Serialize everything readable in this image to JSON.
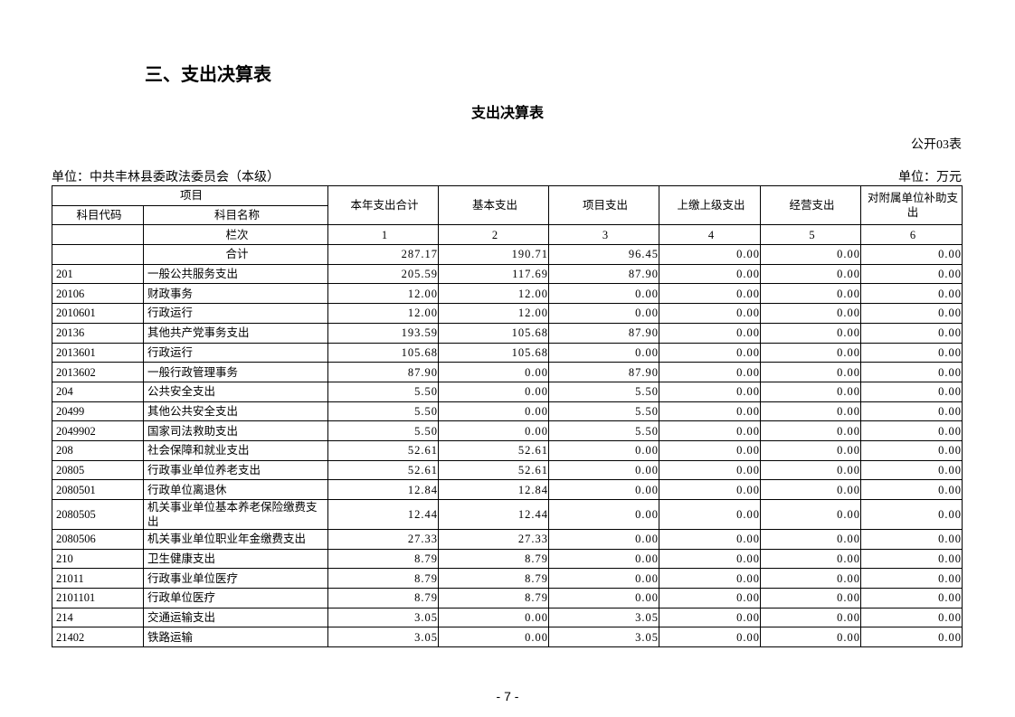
{
  "heading": "三、支出决算表",
  "title": "支出决算表",
  "form_code": "公开03表",
  "unit_left": "单位：中共丰林县委政法委员会（本级）",
  "unit_right": "单位：万元",
  "table": {
    "header": {
      "item": "项目",
      "code": "科目代码",
      "name": "科目名称",
      "columns": [
        "本年支出合计",
        "基本支出",
        "项目支出",
        "上缴上级支出",
        "经营支出",
        "对附属单位补助支出"
      ],
      "seq_label": "栏次",
      "seq": [
        "1",
        "2",
        "3",
        "4",
        "5",
        "6"
      ]
    },
    "total": {
      "name": "合计",
      "values": [
        "287.17",
        "190.71",
        "96.45",
        "0.00",
        "0.00",
        "0.00"
      ]
    },
    "rows": [
      {
        "code": "201",
        "name": "一般公共服务支出",
        "values": [
          "205.59",
          "117.69",
          "87.90",
          "0.00",
          "0.00",
          "0.00"
        ]
      },
      {
        "code": "20106",
        "name": "财政事务",
        "values": [
          "12.00",
          "12.00",
          "0.00",
          "0.00",
          "0.00",
          "0.00"
        ]
      },
      {
        "code": "2010601",
        "name": "行政运行",
        "values": [
          "12.00",
          "12.00",
          "0.00",
          "0.00",
          "0.00",
          "0.00"
        ]
      },
      {
        "code": "20136",
        "name": "其他共产党事务支出",
        "values": [
          "193.59",
          "105.68",
          "87.90",
          "0.00",
          "0.00",
          "0.00"
        ]
      },
      {
        "code": "2013601",
        "name": "行政运行",
        "values": [
          "105.68",
          "105.68",
          "0.00",
          "0.00",
          "0.00",
          "0.00"
        ]
      },
      {
        "code": "2013602",
        "name": "一般行政管理事务",
        "values": [
          "87.90",
          "0.00",
          "87.90",
          "0.00",
          "0.00",
          "0.00"
        ]
      },
      {
        "code": "204",
        "name": "公共安全支出",
        "values": [
          "5.50",
          "0.00",
          "5.50",
          "0.00",
          "0.00",
          "0.00"
        ]
      },
      {
        "code": "20499",
        "name": "其他公共安全支出",
        "values": [
          "5.50",
          "0.00",
          "5.50",
          "0.00",
          "0.00",
          "0.00"
        ]
      },
      {
        "code": "2049902",
        "name": "国家司法救助支出",
        "values": [
          "5.50",
          "0.00",
          "5.50",
          "0.00",
          "0.00",
          "0.00"
        ]
      },
      {
        "code": "208",
        "name": "社会保障和就业支出",
        "values": [
          "52.61",
          "52.61",
          "0.00",
          "0.00",
          "0.00",
          "0.00"
        ]
      },
      {
        "code": "20805",
        "name": "行政事业单位养老支出",
        "values": [
          "52.61",
          "52.61",
          "0.00",
          "0.00",
          "0.00",
          "0.00"
        ]
      },
      {
        "code": "2080501",
        "name": "行政单位离退休",
        "values": [
          "12.84",
          "12.84",
          "0.00",
          "0.00",
          "0.00",
          "0.00"
        ]
      },
      {
        "code": "2080505",
        "name": "机关事业单位基本养老保险缴费支出",
        "values": [
          "12.44",
          "12.44",
          "0.00",
          "0.00",
          "0.00",
          "0.00"
        ]
      },
      {
        "code": "2080506",
        "name": "机关事业单位职业年金缴费支出",
        "values": [
          "27.33",
          "27.33",
          "0.00",
          "0.00",
          "0.00",
          "0.00"
        ]
      },
      {
        "code": "210",
        "name": "卫生健康支出",
        "values": [
          "8.79",
          "8.79",
          "0.00",
          "0.00",
          "0.00",
          "0.00"
        ]
      },
      {
        "code": "21011",
        "name": "行政事业单位医疗",
        "values": [
          "8.79",
          "8.79",
          "0.00",
          "0.00",
          "0.00",
          "0.00"
        ]
      },
      {
        "code": "2101101",
        "name": "行政单位医疗",
        "values": [
          "8.79",
          "8.79",
          "0.00",
          "0.00",
          "0.00",
          "0.00"
        ]
      },
      {
        "code": "214",
        "name": "交通运输支出",
        "values": [
          "3.05",
          "0.00",
          "3.05",
          "0.00",
          "0.00",
          "0.00"
        ]
      },
      {
        "code": "21402",
        "name": "铁路运输",
        "values": [
          "3.05",
          "0.00",
          "3.05",
          "0.00",
          "0.00",
          "0.00"
        ]
      }
    ]
  },
  "page_number": "- 7 -"
}
